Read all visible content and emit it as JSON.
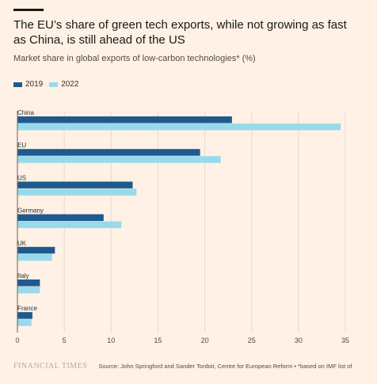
{
  "title": "The EU’s share of green tech exports, while not growing as fast as China, is still ahead of the US",
  "subtitle": "Market share in global exports of low-carbon technologies* (%)",
  "footer": {
    "logo": "FINANCIAL TIMES",
    "source": "Source: John Springford and Sander Tordoir, Centre for European Reform • *based on IMF list of"
  },
  "colors": {
    "accent": "#1a1817",
    "background": "#fff1e5"
  },
  "chart_data": {
    "type": "bar",
    "orientation": "horizontal",
    "categories": [
      "China",
      "EU",
      "US",
      "Germany",
      "UK",
      "Italy",
      "France"
    ],
    "series": [
      {
        "name": "2019",
        "color": "#1f5a8e",
        "values": [
          22.9,
          19.5,
          12.3,
          9.2,
          4.0,
          2.4,
          1.6
        ]
      },
      {
        "name": "2022",
        "color": "#98daeb",
        "values": [
          34.5,
          21.7,
          12.7,
          11.1,
          3.7,
          2.4,
          1.5
        ]
      }
    ],
    "xlim": [
      0,
      35
    ],
    "xticks": [
      0,
      5,
      10,
      15,
      20,
      25,
      30,
      35
    ],
    "grid": true,
    "legend": "top-left"
  }
}
